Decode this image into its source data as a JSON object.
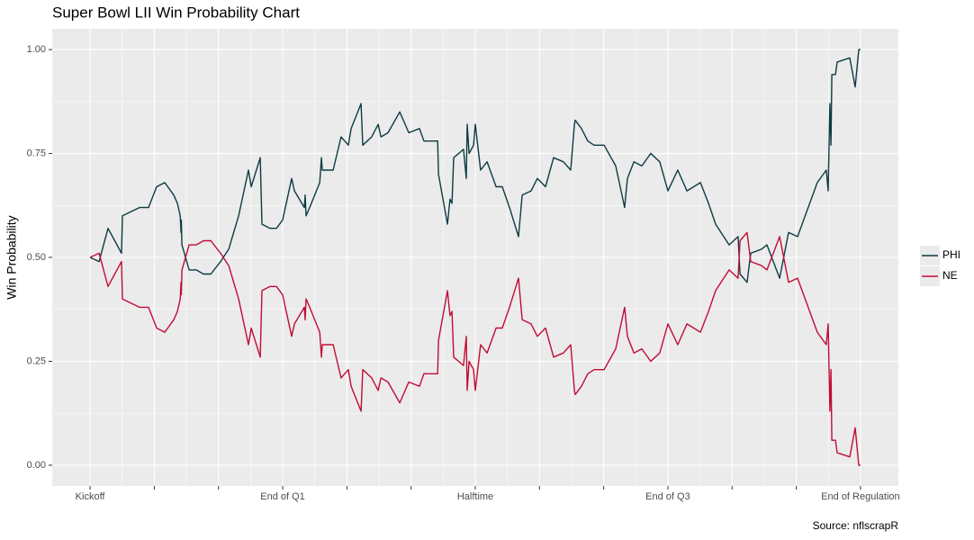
{
  "chart_data": {
    "type": "line",
    "title": "Super Bowl LII Win Probability Chart",
    "y_label": "Win Probability",
    "caption": "Source: nflscrapR",
    "x": [
      0,
      42,
      84,
      147,
      151,
      231,
      273,
      311,
      349,
      391,
      408,
      421,
      425,
      426,
      429,
      463,
      496,
      530,
      564,
      610,
      648,
      694,
      740,
      753,
      795,
      803,
      841,
      871,
      900,
      942,
      955,
      1001,
      1005,
      1009,
      1026,
      1073,
      1081,
      1085,
      1136,
      1173,
      1207,
      1220,
      1266,
      1274,
      1316,
      1346,
      1359,
      1392,
      1447,
      1489,
      1539,
      1560,
      1624,
      1628,
      1670,
      1682,
      1691,
      1699,
      1745,
      1758,
      1762,
      1771,
      1792,
      1800,
      1825,
      1855,
      1897,
      1926,
      1960,
      2002,
      2019,
      2061,
      2090,
      2128,
      2166,
      2212,
      2246,
      2263,
      2267,
      2296,
      2326,
      2355,
      2402,
      2456,
      2498,
      2511,
      2541,
      2578,
      2620,
      2662,
      2700,
      2746,
      2789,
      2852,
      2890,
      2923,
      2948,
      2986,
      3028,
      3037,
      3070,
      3087,
      3138,
      3163,
      3222,
      3264,
      3306,
      3398,
      3440,
      3449,
      3457,
      3462,
      3466,
      3483,
      3491,
      3550,
      3575,
      3592,
      3600
    ],
    "series": [
      {
        "name": "PHI",
        "color": "#0e3b43",
        "values": [
          0.5,
          0.49,
          0.57,
          0.51,
          0.6,
          0.62,
          0.62,
          0.67,
          0.68,
          0.65,
          0.63,
          0.6,
          0.56,
          0.59,
          0.53,
          0.47,
          0.47,
          0.46,
          0.46,
          0.49,
          0.52,
          0.6,
          0.71,
          0.67,
          0.74,
          0.58,
          0.57,
          0.57,
          0.59,
          0.69,
          0.66,
          0.62,
          0.65,
          0.6,
          0.62,
          0.68,
          0.74,
          0.71,
          0.71,
          0.79,
          0.77,
          0.81,
          0.87,
          0.77,
          0.79,
          0.82,
          0.79,
          0.8,
          0.85,
          0.8,
          0.81,
          0.78,
          0.78,
          0.7,
          0.58,
          0.64,
          0.63,
          0.74,
          0.76,
          0.69,
          0.82,
          0.75,
          0.77,
          0.82,
          0.71,
          0.73,
          0.67,
          0.67,
          0.62,
          0.55,
          0.65,
          0.66,
          0.69,
          0.67,
          0.74,
          0.73,
          0.71,
          0.82,
          0.83,
          0.81,
          0.78,
          0.77,
          0.77,
          0.72,
          0.62,
          0.69,
          0.73,
          0.72,
          0.75,
          0.73,
          0.66,
          0.71,
          0.66,
          0.68,
          0.63,
          0.58,
          0.56,
          0.53,
          0.55,
          0.46,
          0.44,
          0.51,
          0.52,
          0.53,
          0.45,
          0.56,
          0.55,
          0.68,
          0.71,
          0.66,
          0.87,
          0.77,
          0.94,
          0.94,
          0.97,
          0.98,
          0.91,
          1.0,
          1.0
        ]
      },
      {
        "name": "NE",
        "color": "#c10c36",
        "values": [
          0.5,
          0.51,
          0.43,
          0.49,
          0.4,
          0.38,
          0.38,
          0.33,
          0.32,
          0.35,
          0.37,
          0.4,
          0.44,
          0.41,
          0.47,
          0.53,
          0.53,
          0.54,
          0.54,
          0.51,
          0.48,
          0.4,
          0.29,
          0.33,
          0.26,
          0.42,
          0.43,
          0.43,
          0.41,
          0.31,
          0.34,
          0.38,
          0.35,
          0.4,
          0.38,
          0.32,
          0.26,
          0.29,
          0.29,
          0.21,
          0.23,
          0.19,
          0.13,
          0.23,
          0.21,
          0.18,
          0.21,
          0.2,
          0.15,
          0.2,
          0.19,
          0.22,
          0.22,
          0.3,
          0.42,
          0.36,
          0.37,
          0.26,
          0.24,
          0.31,
          0.18,
          0.25,
          0.23,
          0.18,
          0.29,
          0.27,
          0.33,
          0.33,
          0.38,
          0.45,
          0.35,
          0.34,
          0.31,
          0.33,
          0.26,
          0.27,
          0.29,
          0.18,
          0.17,
          0.19,
          0.22,
          0.23,
          0.23,
          0.28,
          0.38,
          0.31,
          0.27,
          0.28,
          0.25,
          0.27,
          0.34,
          0.29,
          0.34,
          0.32,
          0.37,
          0.42,
          0.44,
          0.47,
          0.45,
          0.54,
          0.56,
          0.49,
          0.48,
          0.47,
          0.55,
          0.44,
          0.45,
          0.32,
          0.29,
          0.34,
          0.13,
          0.23,
          0.06,
          0.06,
          0.03,
          0.02,
          0.09,
          0.0,
          0.0
        ]
      }
    ],
    "xlim": [
      -177,
      3777
    ],
    "xticks": [
      {
        "value": 0,
        "label": "Kickoff"
      },
      {
        "value": 900,
        "label": "End of Q1"
      },
      {
        "value": 1800,
        "label": "Halftime"
      },
      {
        "value": 2700,
        "label": "End of Q3"
      },
      {
        "value": 3600,
        "label": "End of Regulation"
      }
    ],
    "xminorticks": [
      300,
      600,
      1200,
      1500,
      2100,
      2400,
      3000,
      3300
    ],
    "ylim": [
      -0.05,
      1.05
    ],
    "yticks": [
      {
        "value": 0,
        "label": "0.00"
      },
      {
        "value": 0.25,
        "label": "0.25"
      },
      {
        "value": 0.5,
        "label": "0.50"
      },
      {
        "value": 0.75,
        "label": "0.75"
      },
      {
        "value": 1,
        "label": "1.00"
      }
    ],
    "grid": true,
    "legend": "right"
  }
}
